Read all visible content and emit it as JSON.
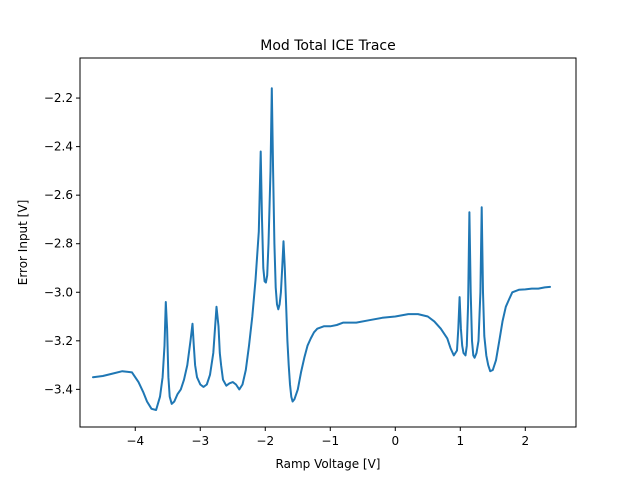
{
  "chart_data": {
    "type": "line",
    "title": "Mod Total ICE Trace",
    "xlabel": "Ramp Voltage [V]",
    "ylabel": "Error Input [V]",
    "xlim": [
      -4.85,
      2.78
    ],
    "ylim": [
      -3.555,
      -2.035
    ],
    "xticks": [
      -4,
      -3,
      -2,
      -1,
      0,
      1,
      2
    ],
    "xtick_labels": [
      "−4",
      "−3",
      "−2",
      "−1",
      "0",
      "1",
      "2"
    ],
    "yticks": [
      -3.4,
      -3.2,
      -3.0,
      -2.8,
      -2.6,
      -2.4,
      -2.2
    ],
    "ytick_labels": [
      "−3.4",
      "−3.2",
      "−3.0",
      "−2.8",
      "−2.6",
      "−2.4",
      "−2.2"
    ],
    "grid": false,
    "color": "#1f77b4",
    "series": [
      {
        "x": [
          -4.65,
          -4.5,
          -4.35,
          -4.2,
          -4.05,
          -3.95,
          -3.88,
          -3.82,
          -3.75,
          -3.68,
          -3.62,
          -3.58,
          -3.55,
          -3.53,
          -3.51,
          -3.49,
          -3.47,
          -3.44,
          -3.4,
          -3.35,
          -3.3,
          -3.25,
          -3.2,
          -3.15,
          -3.12,
          -3.1,
          -3.08,
          -3.05,
          -3.0,
          -2.95,
          -2.9,
          -2.85,
          -2.8,
          -2.75,
          -2.72,
          -2.7,
          -2.68,
          -2.65,
          -2.6,
          -2.55,
          -2.5,
          -2.45,
          -2.4,
          -2.35,
          -2.3,
          -2.25,
          -2.2,
          -2.15,
          -2.1,
          -2.07,
          -2.05,
          -2.03,
          -2.01,
          -1.99,
          -1.97,
          -1.95,
          -1.92,
          -1.9,
          -1.88,
          -1.86,
          -1.84,
          -1.82,
          -1.8,
          -1.78,
          -1.76,
          -1.74,
          -1.72,
          -1.7,
          -1.68,
          -1.66,
          -1.64,
          -1.62,
          -1.6,
          -1.58,
          -1.55,
          -1.5,
          -1.45,
          -1.4,
          -1.35,
          -1.3,
          -1.25,
          -1.2,
          -1.1,
          -1.0,
          -0.9,
          -0.8,
          -0.6,
          -0.4,
          -0.2,
          0.0,
          0.2,
          0.35,
          0.5,
          0.6,
          0.7,
          0.8,
          0.85,
          0.9,
          0.95,
          0.97,
          0.99,
          1.01,
          1.03,
          1.05,
          1.08,
          1.1,
          1.12,
          1.14,
          1.16,
          1.18,
          1.2,
          1.22,
          1.25,
          1.28,
          1.31,
          1.33,
          1.35,
          1.37,
          1.4,
          1.43,
          1.46,
          1.5,
          1.55,
          1.6,
          1.65,
          1.7,
          1.75,
          1.8,
          1.9,
          2.0,
          2.1,
          2.2,
          2.3,
          2.38
        ],
        "y": [
          -3.35,
          -3.345,
          -3.335,
          -3.325,
          -3.33,
          -3.37,
          -3.41,
          -3.45,
          -3.48,
          -3.485,
          -3.43,
          -3.35,
          -3.22,
          -3.04,
          -3.15,
          -3.35,
          -3.43,
          -3.46,
          -3.45,
          -3.42,
          -3.4,
          -3.36,
          -3.3,
          -3.2,
          -3.13,
          -3.22,
          -3.3,
          -3.35,
          -3.38,
          -3.39,
          -3.38,
          -3.34,
          -3.25,
          -3.06,
          -3.14,
          -3.25,
          -3.3,
          -3.36,
          -3.385,
          -3.375,
          -3.37,
          -3.38,
          -3.4,
          -3.38,
          -3.32,
          -3.22,
          -3.1,
          -2.95,
          -2.75,
          -2.42,
          -2.7,
          -2.9,
          -2.955,
          -2.96,
          -2.93,
          -2.8,
          -2.5,
          -2.16,
          -2.5,
          -2.8,
          -2.98,
          -3.05,
          -3.07,
          -3.05,
          -3.0,
          -2.9,
          -2.79,
          -2.9,
          -3.05,
          -3.2,
          -3.3,
          -3.38,
          -3.43,
          -3.45,
          -3.44,
          -3.4,
          -3.33,
          -3.27,
          -3.22,
          -3.19,
          -3.165,
          -3.15,
          -3.14,
          -3.14,
          -3.135,
          -3.125,
          -3.125,
          -3.115,
          -3.105,
          -3.1,
          -3.09,
          -3.09,
          -3.1,
          -3.12,
          -3.15,
          -3.19,
          -3.23,
          -3.26,
          -3.24,
          -3.15,
          -3.02,
          -3.15,
          -3.22,
          -3.25,
          -3.26,
          -3.22,
          -3.05,
          -2.67,
          -3.0,
          -3.2,
          -3.26,
          -3.27,
          -3.25,
          -3.2,
          -3.0,
          -2.65,
          -3.0,
          -3.18,
          -3.26,
          -3.3,
          -3.325,
          -3.32,
          -3.28,
          -3.2,
          -3.12,
          -3.06,
          -3.03,
          -3.0,
          -2.99,
          -2.988,
          -2.985,
          -2.985,
          -2.98,
          -2.978
        ]
      }
    ]
  }
}
